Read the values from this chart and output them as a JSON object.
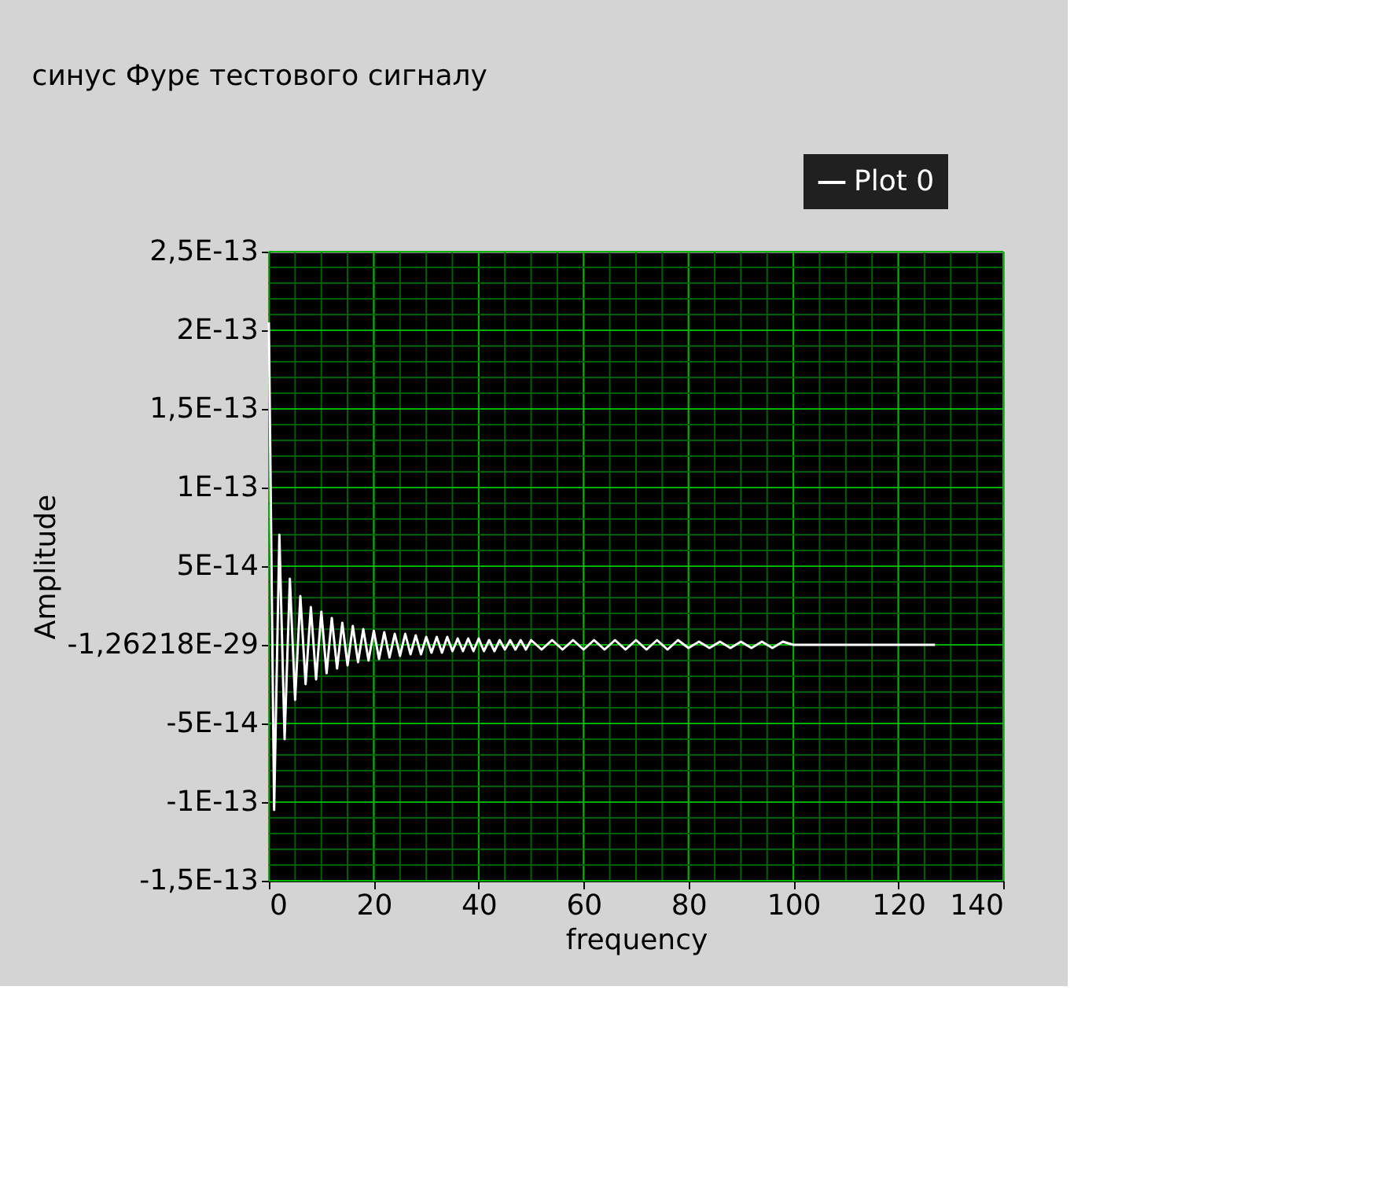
{
  "chart_data": {
    "type": "line",
    "title": "синус Фурє тестового сигналу",
    "xlabel": "frequency",
    "ylabel": "Amplitude",
    "x": [
      0,
      1,
      2,
      3,
      4,
      5,
      6,
      7,
      8,
      9,
      10,
      11,
      12,
      13,
      14,
      15,
      16,
      17,
      18,
      19,
      20,
      21,
      22,
      23,
      24,
      25,
      26,
      27,
      28,
      29,
      30,
      31,
      32,
      33,
      34,
      35,
      36,
      37,
      38,
      39,
      40,
      41,
      42,
      43,
      44,
      45,
      46,
      47,
      48,
      49,
      50,
      52,
      54,
      56,
      58,
      60,
      62,
      64,
      66,
      68,
      70,
      72,
      74,
      76,
      78,
      80,
      82,
      84,
      86,
      88,
      90,
      92,
      94,
      96,
      98,
      100,
      127
    ],
    "series": [
      {
        "name": "Plot 0",
        "color": "#ffffff",
        "values": [
          2.05e-13,
          -1.05e-13,
          7e-14,
          -6e-14,
          4.2e-14,
          -3.5e-14,
          3.1e-14,
          -2.5e-14,
          2.4e-14,
          -2.2e-14,
          2.1e-14,
          -1.8e-14,
          1.7e-14,
          -1.5e-14,
          1.4e-14,
          -1.3e-14,
          1.2e-14,
          -1.1e-14,
          1e-14,
          -1e-14,
          9e-15,
          -9e-15,
          8e-15,
          -8e-15,
          7e-15,
          -7e-15,
          7e-15,
          -6e-15,
          6e-15,
          -6e-15,
          5e-15,
          -5e-15,
          5e-15,
          -5e-15,
          5e-15,
          -4e-15,
          4e-15,
          -4e-15,
          4e-15,
          -4e-15,
          4e-15,
          -4e-15,
          3e-15,
          -4e-15,
          3e-15,
          -3e-15,
          3e-15,
          -3e-15,
          3e-15,
          -3e-15,
          3e-15,
          -3e-15,
          3e-15,
          -3e-15,
          3e-15,
          -3e-15,
          3e-15,
          -3e-15,
          3e-15,
          -3e-15,
          3e-15,
          -3e-15,
          3e-15,
          -3e-15,
          3e-15,
          -2e-15,
          2e-15,
          -2e-15,
          2e-15,
          -2e-15,
          2e-15,
          -2e-15,
          2e-15,
          -2e-15,
          2e-15,
          0,
          0
        ]
      }
    ],
    "xlim": [
      0,
      140
    ],
    "xticks": [
      0,
      20,
      40,
      60,
      80,
      100,
      120,
      140
    ],
    "ylim": [
      -1.5e-13,
      2.5e-13
    ],
    "yticks": [
      {
        "value": -1.5e-13,
        "label": "-1,5E-13"
      },
      {
        "value": -1e-13,
        "label": "-1E-13"
      },
      {
        "value": -5e-14,
        "label": "-5E-14"
      },
      {
        "value": -1.26218e-29,
        "label": "-1,26218E-29"
      },
      {
        "value": 5e-14,
        "label": "5E-14"
      },
      {
        "value": 1e-13,
        "label": "1E-13"
      },
      {
        "value": 1.5e-13,
        "label": "1,5E-13"
      },
      {
        "value": 2e-13,
        "label": "2E-13"
      },
      {
        "value": 2.5e-13,
        "label": "2,5E-13"
      }
    ],
    "grid": true,
    "legend": "top right",
    "marker": "none",
    "line_style": "solid"
  }
}
